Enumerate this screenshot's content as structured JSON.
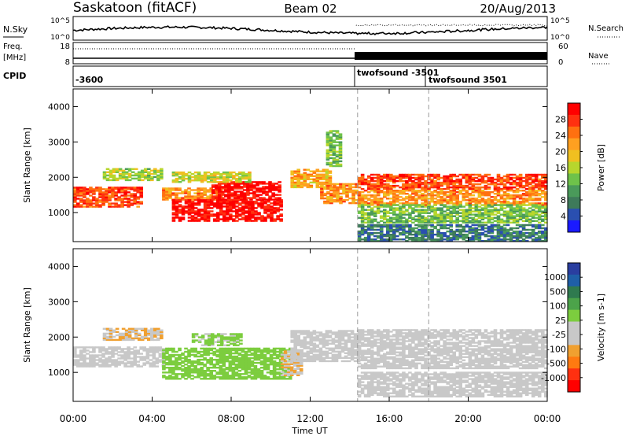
{
  "header": {
    "title": "Saskatoon (fitACF)",
    "beam": "Beam 02",
    "date": "20/Aug/2013"
  },
  "top_panels": {
    "nsky_label": "N.Sky",
    "nsearch_label": "N.Search",
    "nsky_ticks": [
      "10^5",
      "10^0"
    ],
    "freq_label": "Freq.",
    "freq_unit": "[MHz]",
    "freq_ticks": [
      "18",
      "8"
    ],
    "nave_label": "Nave",
    "nave_ticks": [
      "60",
      "0"
    ],
    "cpid_label": "CPID",
    "cpid_entries": [
      "-3600",
      "twofsound -3501",
      "twofsound 3501"
    ]
  },
  "colors": {
    "power_scale": [
      "#1a1aff",
      "#2a4fb0",
      "#3e7a5a",
      "#4a9a5a",
      "#6ec24a",
      "#b7d62d",
      "#f0c020",
      "#ffa020",
      "#ff7010",
      "#ff3010",
      "#ff0000"
    ],
    "velocity_scale": [
      "#2a3ea0",
      "#1f5fa8",
      "#2f7a4f",
      "#4ca34a",
      "#7ccd3e",
      "#c8c8c8",
      "#c8c8c8",
      "#f0a030",
      "#ff7a10",
      "#ff3010",
      "#ff0000"
    ]
  },
  "chart_data": [
    {
      "type": "heatmap",
      "title": "Power",
      "xlabel": "Time UT",
      "ylabel": "Slant Range [km]",
      "x_ticks": [
        "00:00",
        "04:00",
        "08:00",
        "12:00",
        "16:00",
        "20:00",
        "00:00"
      ],
      "y_ticks": [
        "1000",
        "2000",
        "3000",
        "4000"
      ],
      "xlim_hours": [
        0,
        24
      ],
      "ylim_km": [
        180,
        4500
      ],
      "colorbar_label": "Power [dB]",
      "colorbar_ticks": [
        "4",
        "8",
        "12",
        "16",
        "20",
        "24",
        "28"
      ],
      "colorbar_range": [
        0,
        30
      ],
      "mode_change_hours": [
        14.4,
        18.0
      ],
      "bands": [
        {
          "t0": 0.0,
          "t1": 3.5,
          "r0": 1150,
          "r1": 1700,
          "value": 26
        },
        {
          "t0": 1.5,
          "t1": 4.5,
          "r0": 1900,
          "r1": 2250,
          "value": 14
        },
        {
          "t0": 4.5,
          "t1": 7.5,
          "r0": 1350,
          "r1": 1700,
          "value": 22
        },
        {
          "t0": 5.0,
          "t1": 10.5,
          "r0": 750,
          "r1": 1350,
          "value": 30
        },
        {
          "t0": 7.0,
          "t1": 10.5,
          "r0": 1350,
          "r1": 1850,
          "value": 30
        },
        {
          "t0": 5.0,
          "t1": 9.0,
          "r0": 1850,
          "r1": 2150,
          "value": 16
        },
        {
          "t0": 11.0,
          "t1": 13.0,
          "r0": 1700,
          "r1": 2200,
          "value": 20
        },
        {
          "t0": 12.5,
          "t1": 14.4,
          "r0": 1250,
          "r1": 1800,
          "value": 22
        },
        {
          "t0": 12.8,
          "t1": 13.6,
          "r0": 2300,
          "r1": 3300,
          "value": 12
        },
        {
          "t0": 14.4,
          "t1": 24.0,
          "r0": 1650,
          "r1": 2100,
          "value": 26
        },
        {
          "t0": 14.4,
          "t1": 24.0,
          "r0": 1200,
          "r1": 1650,
          "value": 22
        },
        {
          "t0": 14.4,
          "t1": 24.0,
          "r0": 700,
          "r1": 1200,
          "value": 12
        },
        {
          "t0": 14.4,
          "t1": 24.0,
          "r0": 180,
          "r1": 650,
          "value": 6
        }
      ]
    },
    {
      "type": "heatmap",
      "title": "Velocity",
      "xlabel": "Time UT",
      "ylabel": "Slant Range [km]",
      "x_ticks": [
        "00:00",
        "04:00",
        "08:00",
        "12:00",
        "16:00",
        "20:00",
        "00:00"
      ],
      "y_ticks": [
        "1000",
        "2000",
        "3000",
        "4000"
      ],
      "xlim_hours": [
        0,
        24
      ],
      "ylim_km": [
        180,
        4500
      ],
      "colorbar_label": "Velocity [m s-1]",
      "colorbar_ticks": [
        "1000",
        "500",
        "100",
        "25",
        "-25",
        "-100",
        "-500",
        "-1000"
      ],
      "colorbar_range": [
        -1000,
        1000
      ],
      "mode_change_hours": [
        14.4,
        18.0
      ],
      "bands": [
        {
          "t0": 0.0,
          "t1": 4.5,
          "r0": 1150,
          "r1": 1700,
          "value": 0
        },
        {
          "t0": 1.5,
          "t1": 4.5,
          "r0": 1900,
          "r1": 2250,
          "value": -300
        },
        {
          "t0": 4.5,
          "t1": 11.0,
          "r0": 800,
          "r1": 1700,
          "value": 200
        },
        {
          "t0": 6.0,
          "t1": 8.5,
          "r0": 1750,
          "r1": 2100,
          "value": 150
        },
        {
          "t0": 10.5,
          "t1": 11.5,
          "r0": 900,
          "r1": 1600,
          "value": -300
        },
        {
          "t0": 11.0,
          "t1": 14.4,
          "r0": 1300,
          "r1": 2200,
          "value": 0
        },
        {
          "t0": 14.4,
          "t1": 24.0,
          "r0": 1100,
          "r1": 2200,
          "value": 0
        },
        {
          "t0": 14.4,
          "t1": 24.0,
          "r0": 300,
          "r1": 1000,
          "value": -50
        }
      ]
    }
  ]
}
